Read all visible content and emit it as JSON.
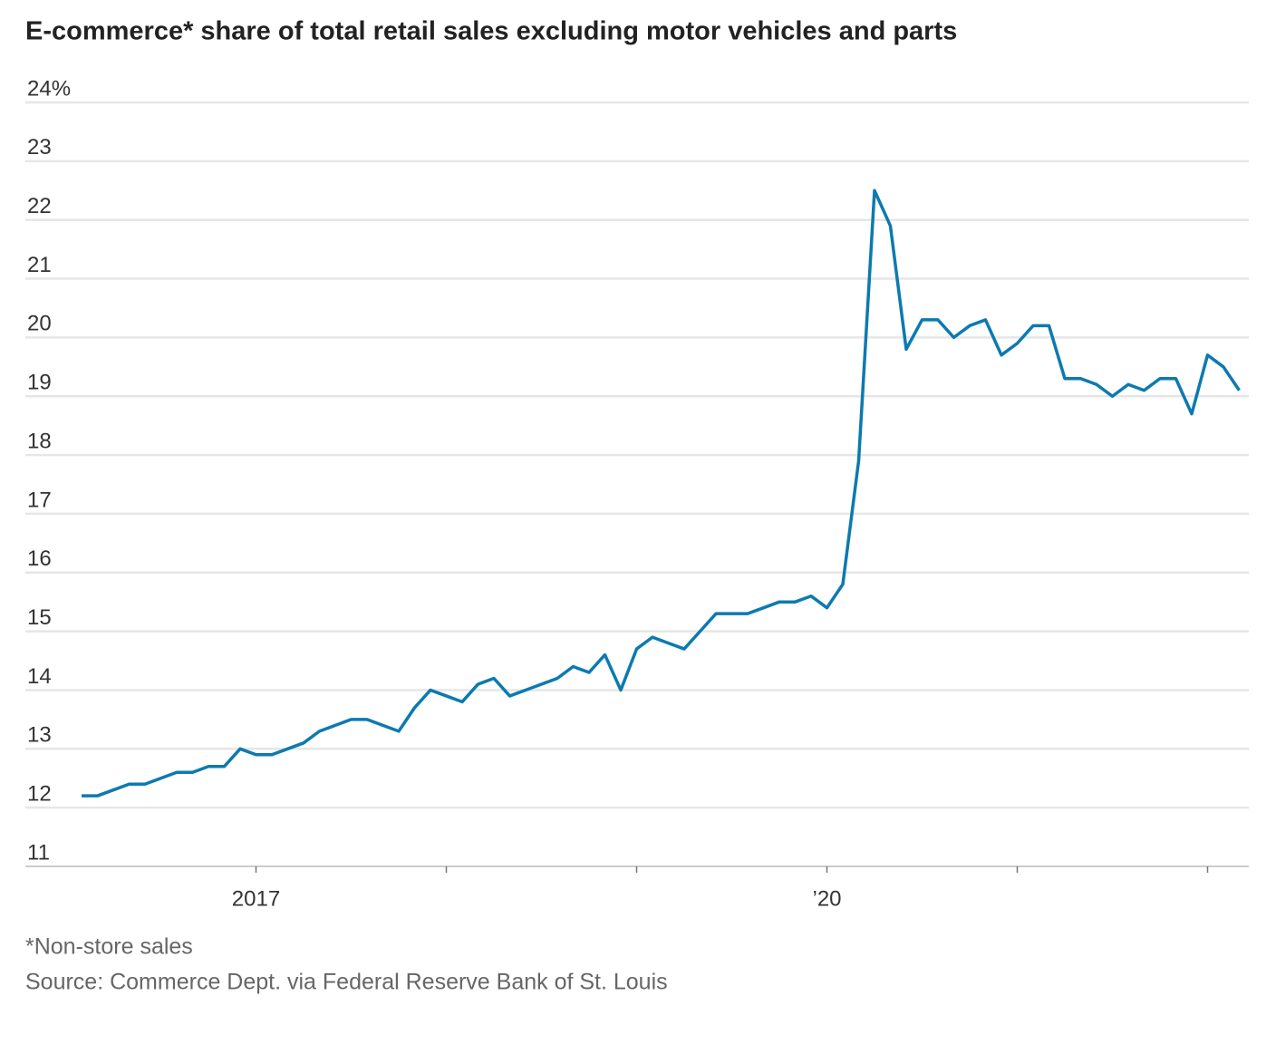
{
  "chart_data": {
    "type": "line",
    "title": "E-commerce* share of total retail sales excluding motor vehicles and parts",
    "footnote": "*Non-store sales",
    "source": "Source: Commerce Dept. via Federal Reserve Bank of St. Louis",
    "categories": [
      null,
      null,
      null,
      null,
      null,
      null,
      null,
      null,
      null,
      null,
      null,
      "2017",
      null,
      null,
      null,
      null,
      null,
      null,
      null,
      null,
      null,
      null,
      null,
      null,
      null,
      null,
      null,
      null,
      null,
      null,
      null,
      null,
      null,
      null,
      null,
      null,
      null,
      null,
      null,
      null,
      null,
      null,
      null,
      null,
      null,
      null,
      null,
      "’20",
      null,
      null,
      null,
      null,
      null,
      null,
      null,
      null,
      null,
      null,
      null,
      null,
      null,
      null,
      null,
      null,
      null,
      null,
      null,
      null,
      null,
      null,
      null,
      null,
      null,
      null
    ],
    "series": [
      {
        "name": "E-commerce share",
        "color": "#0c7ab0",
        "values": [
          12.2,
          12.2,
          12.3,
          12.4,
          12.4,
          12.5,
          12.6,
          12.6,
          12.7,
          12.7,
          13.0,
          12.9,
          12.9,
          13.0,
          13.1,
          13.3,
          13.4,
          13.5,
          13.5,
          13.4,
          13.3,
          13.7,
          14.0,
          13.9,
          13.8,
          14.1,
          14.2,
          13.9,
          14.0,
          14.1,
          14.2,
          14.4,
          14.3,
          14.6,
          14.0,
          14.7,
          14.9,
          14.8,
          14.7,
          15.0,
          15.3,
          15.3,
          15.3,
          15.4,
          15.5,
          15.5,
          15.6,
          15.4,
          15.8,
          17.9,
          22.5,
          21.9,
          19.8,
          20.3,
          20.3,
          20.0,
          20.2,
          20.3,
          19.7,
          19.9,
          20.2,
          20.2,
          19.3,
          19.3,
          19.2,
          19.0,
          19.2,
          19.1,
          19.3,
          19.3,
          18.7,
          19.7,
          19.5,
          19.1
        ]
      }
    ],
    "ylim": [
      11,
      24
    ],
    "yticks": [
      11,
      12,
      13,
      14,
      15,
      16,
      17,
      18,
      19,
      20,
      21,
      22,
      23,
      {
        "value": 24,
        "label": "24%"
      }
    ],
    "grid": true
  }
}
